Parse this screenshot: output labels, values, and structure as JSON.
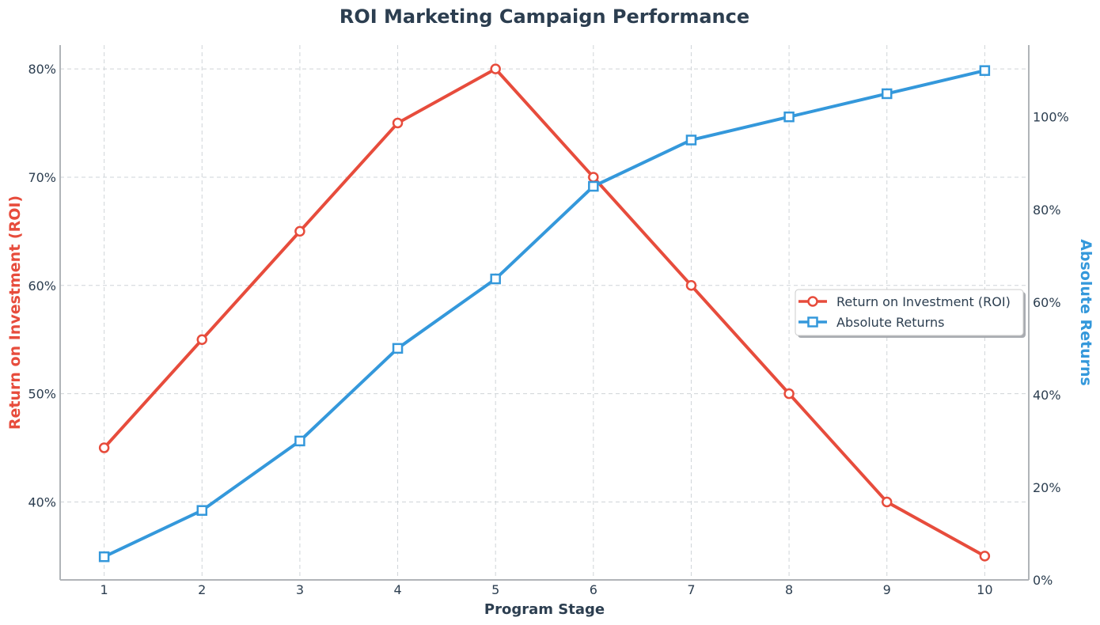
{
  "chart_data": {
    "type": "line",
    "title": "ROI Marketing Campaign Performance",
    "xlabel": "Program Stage",
    "ylabel_left": "Return on Investment (ROI)",
    "ylabel_right": "Absolute Returns",
    "x": [
      1,
      2,
      3,
      4,
      5,
      6,
      7,
      8,
      9,
      10
    ],
    "xlim": [
      0.55,
      10.45
    ],
    "ylim_left": [
      32.8,
      82.2
    ],
    "ylim_right": [
      0,
      115.5
    ],
    "yticks_left": [
      40,
      50,
      60,
      70,
      80
    ],
    "yticks_right": [
      0,
      20,
      40,
      60,
      80,
      100
    ],
    "tick_suffix": "%",
    "grid": true,
    "legend_position": "center-right",
    "series": [
      {
        "name": "Return on Investment (ROI)",
        "axis": "left",
        "marker": "circle",
        "color": "#e74c3c",
        "values": [
          45,
          55,
          65,
          75,
          80,
          70,
          60,
          50,
          40,
          35
        ]
      },
      {
        "name": "Absolute Returns",
        "axis": "right",
        "marker": "square",
        "color": "#3498db",
        "values": [
          5,
          15,
          30,
          50,
          65,
          85,
          95,
          100,
          105,
          110
        ]
      }
    ]
  }
}
